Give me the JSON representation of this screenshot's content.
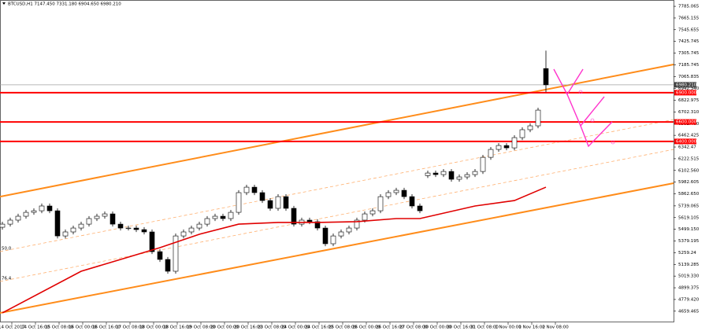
{
  "chart_data": {
    "type": "candlestick",
    "header": "BTCUSD,H1  7147.450 7331.180 6904.650 6980.210",
    "xlim": [
      -0.3,
      85.2
    ],
    "ylim": [
      4545,
      7850
    ],
    "xticks": [
      {
        "value": 1.2,
        "label": "14 Oct 2017"
      },
      {
        "value": 4.2,
        "label": "14 Oct 16:00"
      },
      {
        "value": 7.2,
        "label": "15 Oct 08:00"
      },
      {
        "value": 10.2,
        "label": "16 Oct 00:00"
      },
      {
        "value": 13.2,
        "label": "16 Oct 16:00"
      },
      {
        "value": 16.2,
        "label": "17 Oct 08:00"
      },
      {
        "value": 19.2,
        "label": "18 Oct 00:00"
      },
      {
        "value": 22.2,
        "label": "18 Oct 16:00"
      },
      {
        "value": 25.2,
        "label": "19 Oct 08:00"
      },
      {
        "value": 28.2,
        "label": "20 Oct 00:00"
      },
      {
        "value": 31.2,
        "label": "20 Oct 16:00"
      },
      {
        "value": 34.2,
        "label": "23 Oct 08:00"
      },
      {
        "value": 37.2,
        "label": "24 Oct 00:00"
      },
      {
        "value": 40.2,
        "label": "24 Oct 16:00"
      },
      {
        "value": 43.2,
        "label": "25 Oct 08:00"
      },
      {
        "value": 46.2,
        "label": "26 Oct 00:00"
      },
      {
        "value": 49.2,
        "label": "26 Oct 16:00"
      },
      {
        "value": 52.2,
        "label": "27 Oct 08:00"
      },
      {
        "value": 55.2,
        "label": "30 Oct 00:00"
      },
      {
        "value": 58.2,
        "label": "30 Oct 16:00"
      },
      {
        "value": 61.2,
        "label": "31 Oct 08:00"
      },
      {
        "value": 64.2,
        "label": "1 Nov 00:00"
      },
      {
        "value": 67.2,
        "label": "1 Nov 16:00"
      },
      {
        "value": 70.2,
        "label": "2 Nov 08:00"
      }
    ],
    "yticks": [
      7785.065,
      7665.155,
      7545.655,
      7425.745,
      7305.745,
      7185.745,
      7065.835,
      {
        "value": 6942.34,
        "label": "6942.340"
      },
      6822.975,
      {
        "value": 6702.31,
        "label": "6702.310"
      },
      {
        "value": 6582.4,
        "label": "6582.400"
      },
      6462.425,
      6342.47,
      6222.515,
      {
        "value": 6102.56,
        "label": "6102.560"
      },
      5982.605,
      {
        "value": 5862.65,
        "label": "5862.650"
      },
      5739.065,
      5619.105,
      {
        "value": 5499.15,
        "label": "5499.150"
      },
      5379.195,
      5259.24,
      5139.285,
      {
        "value": 5019.33,
        "label": "5019.330"
      },
      4899.375,
      {
        "value": 4779.42,
        "label": "4779.420"
      },
      4659.465
    ],
    "open": [
      5520,
      5552,
      5593,
      5633,
      5673,
      5689,
      5738,
      5689,
      5431,
      5472,
      5512,
      5552,
      5609,
      5633,
      5657,
      5552,
      5512,
      5512,
      5496,
      5472,
      5270,
      5190,
      5069,
      5431,
      5472,
      5512,
      5552,
      5609,
      5633,
      5609,
      5673,
      5875,
      5931,
      5875,
      5794,
      5714,
      5834,
      5714,
      5552,
      5593,
      5577,
      5512,
      5351,
      5431,
      5472,
      5512,
      5593,
      5657,
      5689,
      5834,
      5875,
      5899,
      5834,
      5738,
      6050,
      6076,
      6060,
      6092,
      6012,
      6036,
      6060,
      6092,
      6237,
      6318,
      6358,
      6334,
      6439,
      6520,
      6560,
      7147.45
    ],
    "high": [
      5577,
      5618,
      5658,
      5698,
      5714,
      5763,
      5763,
      5714,
      5497,
      5537,
      5577,
      5634,
      5658,
      5682,
      5682,
      5577,
      5537,
      5537,
      5521,
      5497,
      5295,
      5215,
      5456,
      5497,
      5537,
      5577,
      5634,
      5658,
      5658,
      5698,
      5900,
      5956,
      5956,
      5900,
      5819,
      5859,
      5859,
      5739,
      5618,
      5618,
      5602,
      5537,
      5456,
      5497,
      5537,
      5618,
      5682,
      5714,
      5859,
      5900,
      5924,
      5924,
      5859,
      5763,
      6101,
      6101,
      6117,
      6117,
      6061,
      6085,
      6117,
      6262,
      6343,
      6383,
      6383,
      6464,
      6545,
      6585,
      6746,
      7331.18
    ],
    "low": [
      5495,
      5527,
      5568,
      5608,
      5648,
      5664,
      5664,
      5406,
      5406,
      5447,
      5487,
      5527,
      5584,
      5608,
      5527,
      5487,
      5487,
      5471,
      5447,
      5245,
      5165,
      5044,
      5044,
      5406,
      5447,
      5487,
      5527,
      5584,
      5584,
      5584,
      5648,
      5850,
      5850,
      5769,
      5689,
      5689,
      5689,
      5527,
      5527,
      5552,
      5487,
      5326,
      5326,
      5406,
      5447,
      5487,
      5568,
      5632,
      5664,
      5809,
      5850,
      5809,
      5713,
      5664,
      6025,
      6035,
      6035,
      5987,
      5987,
      6011,
      6035,
      6067,
      6212,
      6293,
      6309,
      6309,
      6414,
      6495,
      6535,
      6904.65
    ],
    "close": [
      5552,
      5593,
      5633,
      5673,
      5689,
      5738,
      5689,
      5431,
      5472,
      5512,
      5552,
      5609,
      5633,
      5657,
      5552,
      5512,
      5512,
      5496,
      5472,
      5270,
      5190,
      5069,
      5431,
      5472,
      5512,
      5552,
      5609,
      5633,
      5609,
      5673,
      5875,
      5931,
      5875,
      5794,
      5714,
      5834,
      5714,
      5552,
      5593,
      5577,
      5512,
      5351,
      5431,
      5472,
      5512,
      5593,
      5657,
      5689,
      5834,
      5875,
      5899,
      5834,
      5738,
      5689,
      6076,
      6060,
      6092,
      6012,
      6036,
      6060,
      6092,
      6237,
      6318,
      6358,
      6334,
      6439,
      6520,
      6560,
      6721,
      6980.21
    ],
    "moving_average": {
      "color": "#e00000",
      "x": [
        0,
        10,
        20,
        25,
        30,
        35,
        40,
        45,
        50,
        53,
        60,
        65,
        69
      ],
      "values": [
        4642,
        5069,
        5311,
        5448,
        5552,
        5569,
        5569,
        5577,
        5609,
        5609,
        5738,
        5794,
        5931
      ]
    },
    "channel_lines": [
      {
        "color": "#ff8c1a",
        "dashed": false,
        "x": [
          -0.3,
          85.2
        ],
        "values": [
          5834,
          7189
        ]
      },
      {
        "color": "#ff8c1a",
        "dashed": false,
        "x": [
          -0.3,
          85.2
        ],
        "values": [
          4642,
          5972
        ]
      },
      {
        "color": "#ffb070",
        "dashed": true,
        "label": "50.0",
        "x": [
          -0.3,
          85.2
        ],
        "values": [
          5270,
          6624
        ]
      },
      {
        "color": "#ffb070",
        "dashed": true,
        "label": "76.4",
        "x": [
          -0.3,
          85.2
        ],
        "values": [
          4964,
          6318
        ]
      }
    ],
    "levels": [
      {
        "color": "#ff0000",
        "value": 6900,
        "value_label": "6900.000"
      },
      {
        "color": "#ff0000",
        "value": 6600,
        "value_label": "6600.000"
      },
      {
        "color": "#ff0000",
        "value": 6400,
        "value_label": "6400.000"
      }
    ],
    "current_price": {
      "value": 6980.21,
      "value_label": "6980.210",
      "color": "#a0a0a0"
    }
  }
}
